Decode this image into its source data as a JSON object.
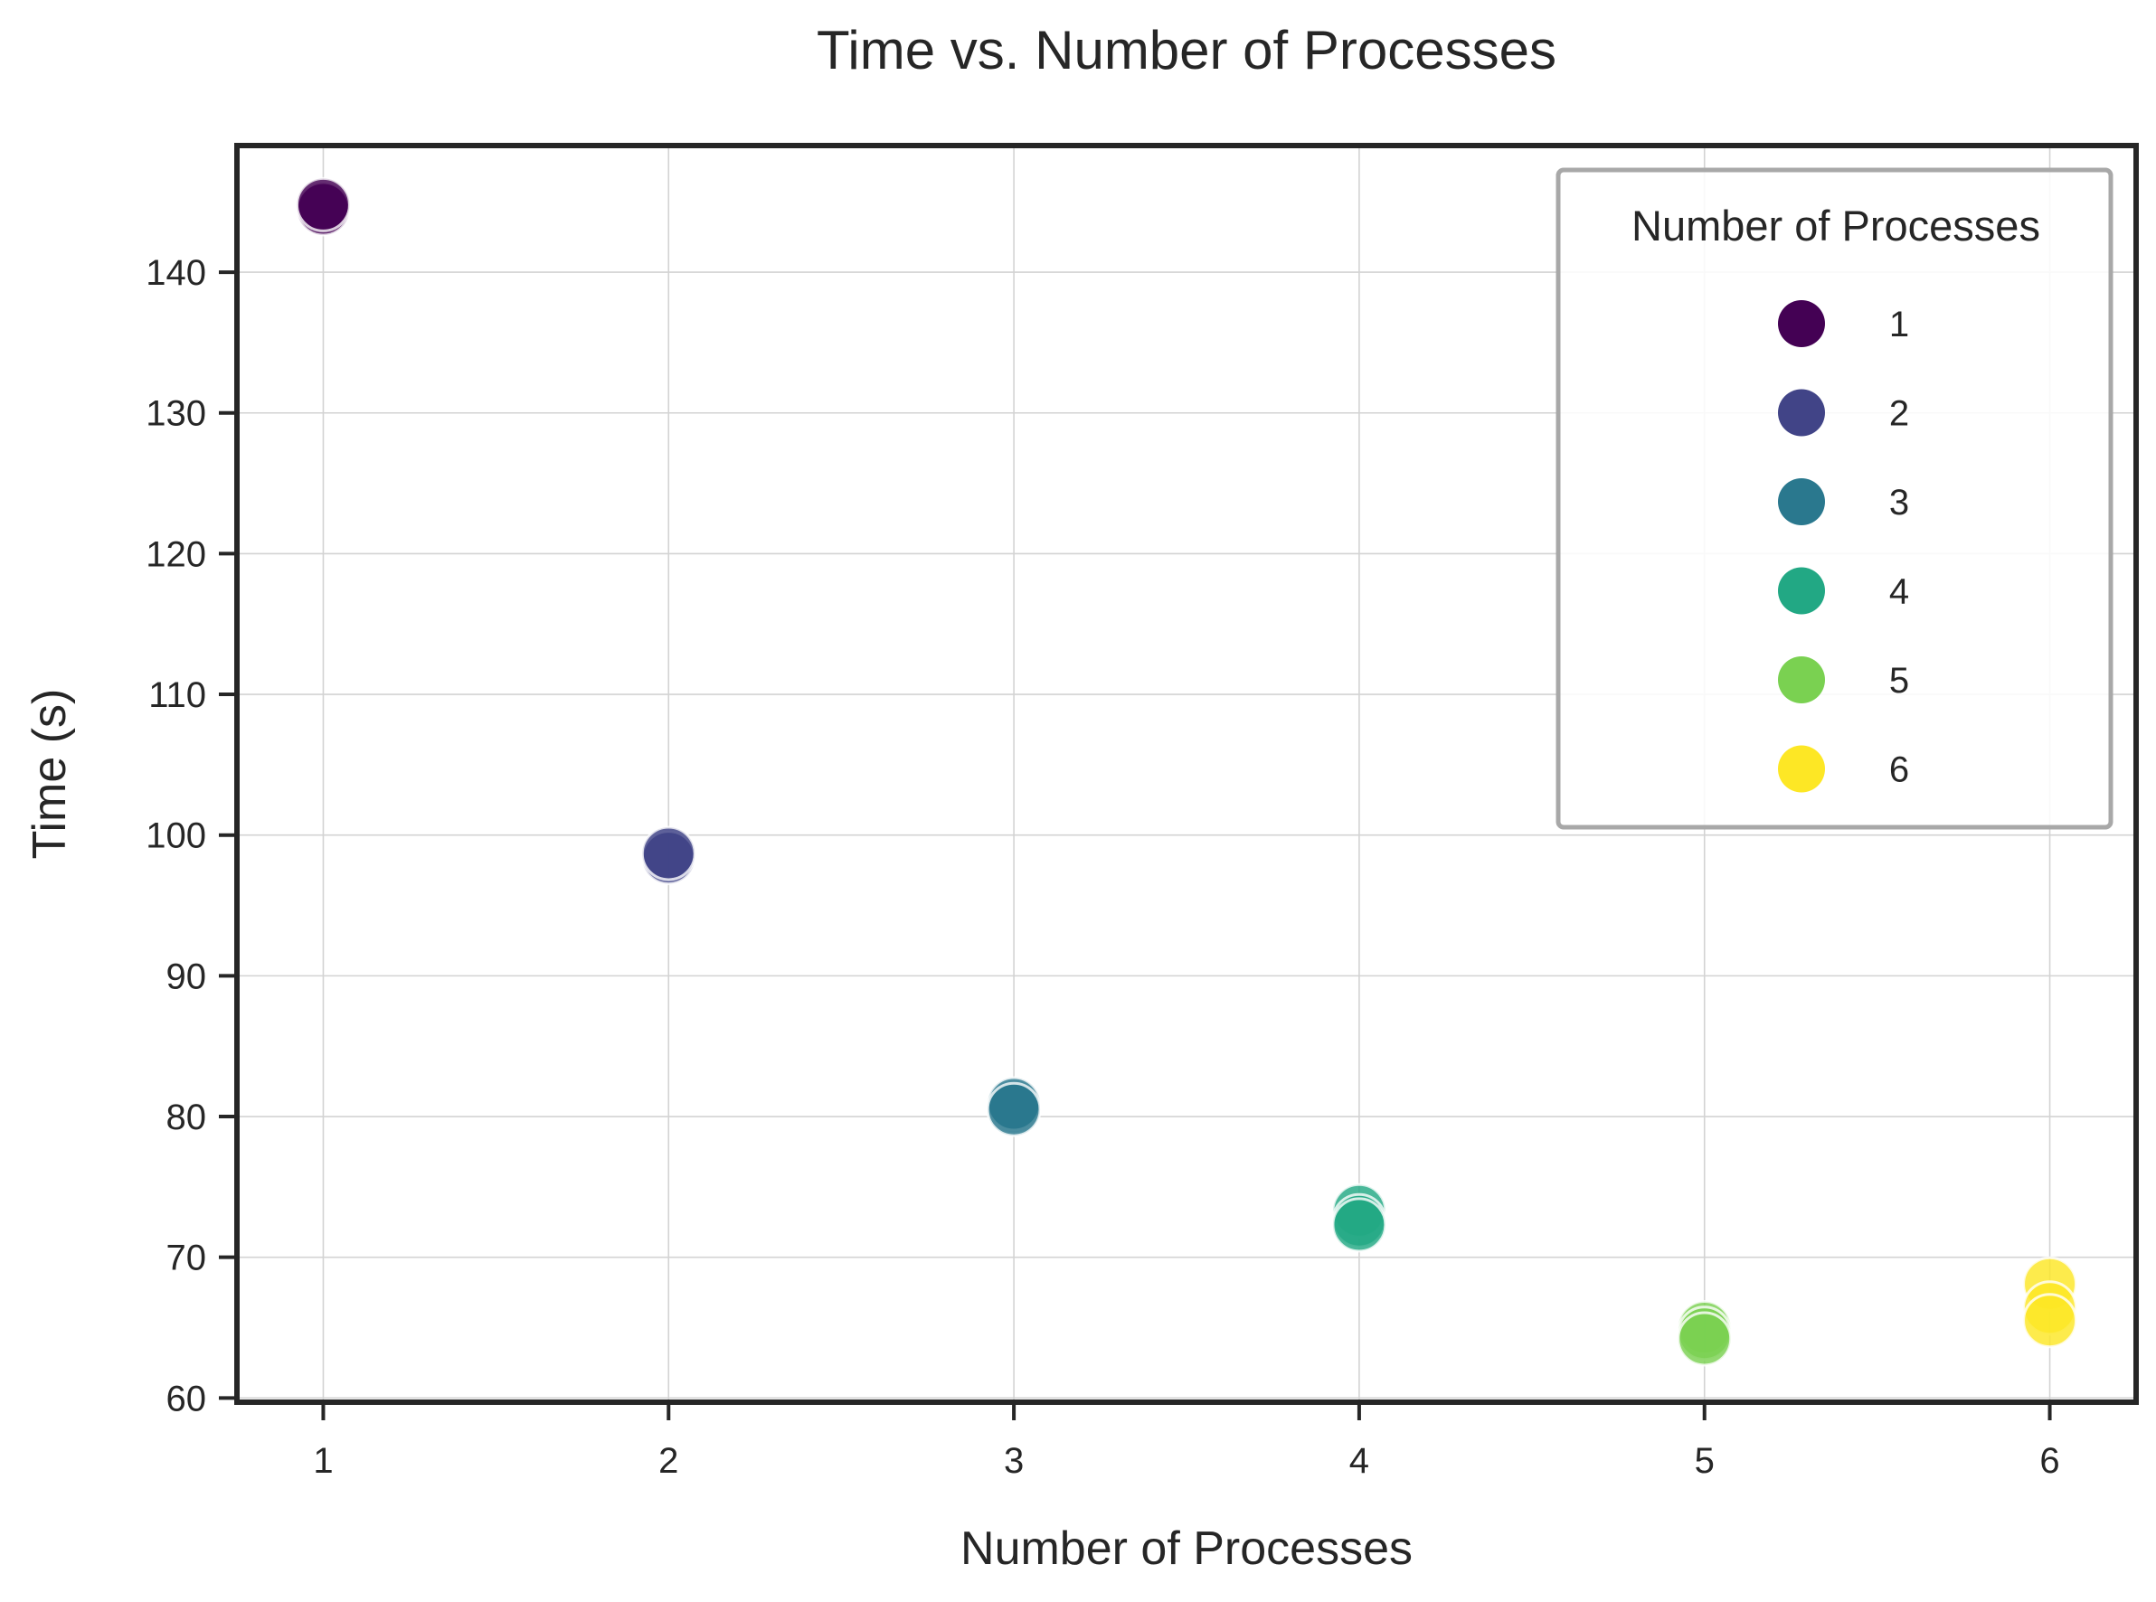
{
  "chart_data": {
    "type": "scatter",
    "title": "Time vs. Number of Processes",
    "xlabel": "Number of Processes",
    "ylabel": "Time (s)",
    "xlim": [
      0.75,
      6.25
    ],
    "ylim": [
      59.7,
      149.0
    ],
    "xticks": [
      1,
      2,
      3,
      4,
      5,
      6
    ],
    "yticks": [
      60,
      70,
      80,
      90,
      100,
      110,
      120,
      130,
      140
    ],
    "grid": true,
    "legend": {
      "title": "Number of Processes",
      "position": "top-right"
    },
    "series": [
      {
        "name": "1",
        "color": "#440154",
        "points": [
          [
            1,
            144.6
          ],
          [
            1,
            144.5
          ],
          [
            1,
            144.8
          ]
        ]
      },
      {
        "name": "2",
        "color": "#414487",
        "points": [
          [
            2,
            98.6
          ],
          [
            2,
            98.4
          ],
          [
            2,
            98.7
          ]
        ]
      },
      {
        "name": "3",
        "color": "#2a788e",
        "points": [
          [
            3,
            80.7
          ],
          [
            3,
            80.9
          ],
          [
            3,
            80.5
          ]
        ]
      },
      {
        "name": "4",
        "color": "#22a884",
        "points": [
          [
            4,
            73.3
          ],
          [
            4,
            72.6
          ],
          [
            4,
            72.3
          ]
        ]
      },
      {
        "name": "5",
        "color": "#7ad151",
        "points": [
          [
            5,
            65.0
          ],
          [
            5,
            64.6
          ],
          [
            5,
            64.2
          ]
        ]
      },
      {
        "name": "6",
        "color": "#fde725",
        "points": [
          [
            6,
            68.1
          ],
          [
            6,
            66.4
          ],
          [
            6,
            65.5
          ]
        ]
      }
    ]
  }
}
